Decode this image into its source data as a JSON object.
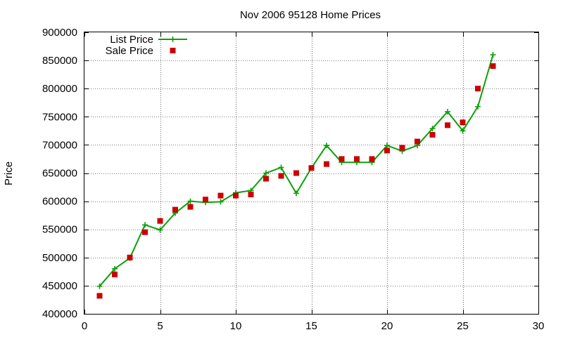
{
  "chart_data": {
    "type": "line",
    "title": "Nov 2006 95128 Home Prices",
    "xlabel": "",
    "ylabel": "Price",
    "xlim": [
      0,
      30
    ],
    "ylim": [
      400000,
      900000
    ],
    "x_ticks": [
      0,
      5,
      10,
      15,
      20,
      25,
      30
    ],
    "y_ticks": [
      400000,
      450000,
      500000,
      550000,
      600000,
      650000,
      700000,
      750000,
      800000,
      850000,
      900000
    ],
    "grid": true,
    "legend_position": "top-left",
    "x": [
      1,
      2,
      3,
      4,
      5,
      6,
      7,
      8,
      9,
      10,
      11,
      12,
      13,
      14,
      15,
      16,
      17,
      18,
      19,
      20,
      21,
      22,
      23,
      24,
      25,
      26,
      27
    ],
    "series": [
      {
        "name": "List Price",
        "style": "line-plus",
        "color": "#0aa10a",
        "values": [
          449000,
          480000,
          499000,
          558000,
          549000,
          579000,
          600000,
          598000,
          599000,
          615000,
          619000,
          650000,
          660000,
          614000,
          659000,
          699000,
          669000,
          669000,
          669000,
          699000,
          689000,
          699000,
          729000,
          759000,
          725000,
          768000,
          860000
        ]
      },
      {
        "name": "Sale Price",
        "style": "square-points",
        "color": "#cc0000",
        "values": [
          432000,
          470000,
          500000,
          545000,
          565000,
          585000,
          590000,
          603000,
          610000,
          610000,
          612000,
          640000,
          645000,
          650000,
          659000,
          666000,
          675000,
          675000,
          675000,
          690000,
          695000,
          706000,
          718000,
          735000,
          740000,
          800000,
          840000
        ]
      }
    ]
  }
}
